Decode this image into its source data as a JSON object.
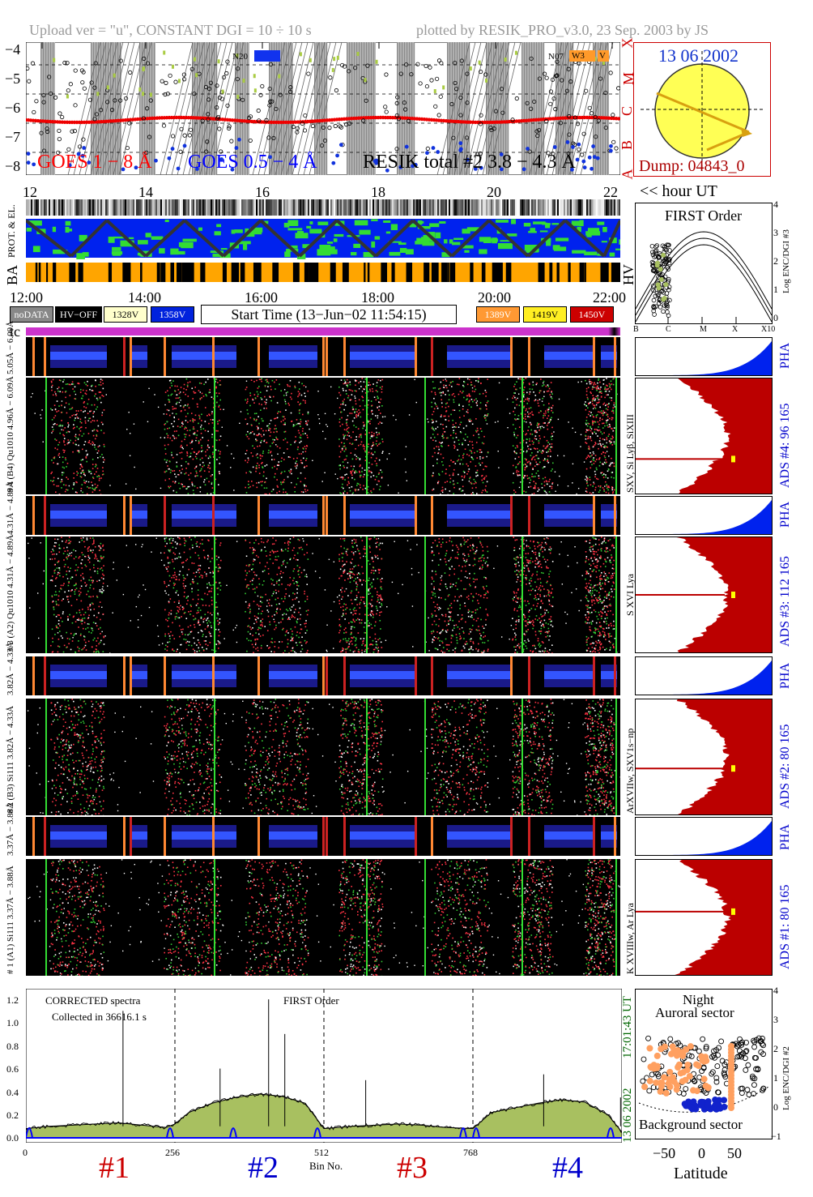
{
  "header": {
    "upload": "Upload ver = \"u\", CONSTANT  DGI =  10 ÷  10 s",
    "plotted": "plotted by RESIK_PRO_v3.0, 23 Sep. 2003 by JS"
  },
  "goes_panel": {
    "yticks": [
      "−4",
      "−5",
      "−6",
      "−7",
      "−8"
    ],
    "xticks": [
      "12",
      "14",
      "16",
      "18",
      "20",
      "22"
    ],
    "flare_classes": [
      "X",
      "M",
      "C",
      "B",
      "A"
    ],
    "legend_goes1": "GOES 1 − 8 Å",
    "legend_goes2": "GOES 0.5 − 4 Å",
    "legend_resik": "RESIK total #2  3.8 − 4.3 Å",
    "marker1": "N20",
    "marker2": "N07",
    "marker3": "W3",
    "marker4": "V",
    "hour_label": "<< hour UT",
    "colors": {
      "goes1": "#ff0000",
      "goes2": "#0000ff",
      "resik": "#000000"
    }
  },
  "sun_panel": {
    "date": "13 06 2002",
    "dump": "Dump: 04843_0"
  },
  "orbit_panel": {
    "prot_label": "PROT. & EL.",
    "ba_label": "BA",
    "hv_label": "HV",
    "xticks": [
      "12:00",
      "14:00",
      "16:00",
      "18:00",
      "20:00",
      "22:00"
    ]
  },
  "hv_legend": {
    "nodata": "noDATA",
    "hvoff": "HV−OFF",
    "v1328": "1328V",
    "v1358": "1358V",
    "start_time": "Start Time (13−Jun−02 11:54:15)",
    "v1389": "1389V",
    "v1419": "1419V",
    "v1450": "1450V",
    "tc": "tc"
  },
  "first_order_panel": {
    "title": "FIRST Order",
    "yticks": [
      "4",
      "3",
      "2",
      "1",
      "0"
    ],
    "xticks": [
      "B",
      "C",
      "M",
      "X",
      "X10"
    ],
    "ylabel": "Log ENC/DGI #3"
  },
  "channels": [
    {
      "pha_label": "5.05Å − 6.09Å",
      "spec_label": "# 4 (B4) Qu1010 4.96Å − 6.09Å",
      "lines": "SXV, Si Lyβ, SiXIII",
      "ads": "ADS #4:   96 165",
      "ads_color": "#0000ff"
    },
    {
      "pha_label": "4.31Å − 4.89Å",
      "spec_label": "# 3 (A2) Qu1010 4.31Å − 4.89Å",
      "lines": "S XVI Lya",
      "ads": "ADS #3:   112 165",
      "ads_color": "#0000ff"
    },
    {
      "pha_label": "3.82Å − 4.33Å",
      "spec_label": "# 2 (B3) Si111 3.82Å − 4.33Å",
      "lines": "ArXVIIw, SXV1s−np",
      "ads": "ADS #2:   80 165",
      "ads_color": "#0000ff"
    },
    {
      "pha_label": "3.37Å − 3.88Å",
      "spec_label": "# 1 (A1) Si111 3.37Å − 3.88Å",
      "lines": "K XVIIIw, Ar Lya",
      "ads": "ADS #1:   80 165",
      "ads_color": "#0000ff"
    }
  ],
  "pha_word": "PHA",
  "spectra_panel": {
    "yticks": [
      "1.2",
      "1.0",
      "0.8",
      "0.6",
      "0.4",
      "0.2",
      "0.0"
    ],
    "xticks": [
      "0",
      "256",
      "512",
      "768"
    ],
    "xlabel": "Bin No.",
    "corrected": "CORRECTED spectra",
    "collected": "Collected in 36616.1 s",
    "first_order": "FIRST Order",
    "date": "13 06 2002",
    "time": "17:01:43 UT",
    "channel_labels": [
      {
        "text": "#1",
        "color": "#cc0000"
      },
      {
        "text": "#2",
        "color": "#0000cc"
      },
      {
        "text": "#3",
        "color": "#cc0000"
      },
      {
        "text": "#4",
        "color": "#0000cc"
      }
    ]
  },
  "latitude_panel": {
    "night": "Night",
    "auroral": "Auroral sector",
    "background": "Background sector",
    "xticks": [
      "−50",
      "0",
      "50"
    ],
    "yticks": [
      "4",
      "3",
      "2",
      "1",
      "0",
      "−1"
    ],
    "xlabel": "Latitude",
    "ylabel": "Log ENC/DGI #2"
  },
  "chart_data": {
    "type": "line",
    "title": "",
    "xlabel": "Bin No.",
    "ylabel": "",
    "xlim": [
      0,
      1024
    ],
    "ylim": [
      0,
      1.25
    ],
    "series": [
      {
        "x": [
          0,
          40,
          80,
          120,
          160,
          200,
          240,
          256,
          280,
          320,
          360,
          400,
          440,
          480,
          512,
          560,
          600,
          640,
          680,
          720,
          768,
          800,
          840,
          880,
          920,
          960,
          1000,
          1024
        ],
        "values": [
          0.08,
          0.1,
          0.11,
          0.12,
          0.13,
          0.11,
          0.09,
          0.12,
          0.22,
          0.3,
          0.35,
          0.38,
          0.36,
          0.3,
          0.08,
          0.1,
          0.11,
          0.12,
          0.11,
          0.09,
          0.08,
          0.22,
          0.26,
          0.3,
          0.33,
          0.31,
          0.2,
          0.05
        ]
      }
    ]
  }
}
